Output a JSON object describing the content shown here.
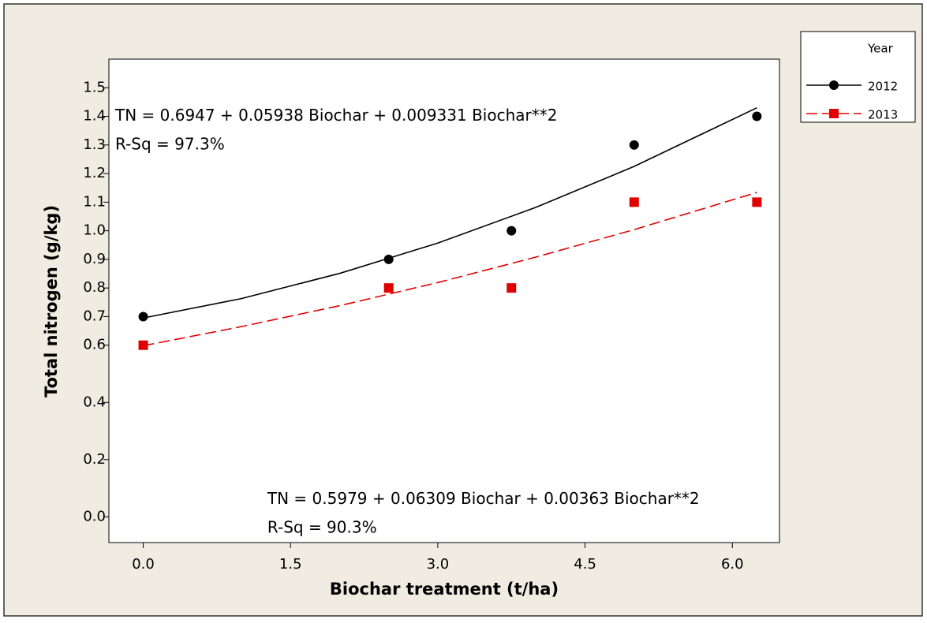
{
  "chart_data": {
    "type": "scatter",
    "x_label": "Biochar treatment (t/ha)",
    "y_label": "Total nitrogen (g/kg)",
    "x": [
      0,
      2.5,
      3.75,
      5,
      6.25
    ],
    "fit_x": [
      0,
      1,
      2,
      3,
      4,
      5,
      6.25
    ],
    "series": [
      {
        "name": "2012",
        "color": "#000000",
        "marker": "circle",
        "dash": false,
        "values": [
          0.7,
          0.9,
          1.0,
          1.3,
          1.4
        ],
        "fit_values": [
          0.695,
          0.763,
          0.851,
          0.957,
          1.082,
          1.225,
          1.43
        ]
      },
      {
        "name": "2013",
        "color": "#e00000",
        "marker": "square",
        "dash": true,
        "values": [
          0.6,
          0.8,
          0.8,
          1.1,
          1.1
        ],
        "fit_values": [
          0.598,
          0.665,
          0.738,
          0.819,
          0.908,
          1.004,
          1.134
        ]
      }
    ],
    "legend_title": "Year",
    "annotations": [
      {
        "text": "TN = 0.6947 + 0.05938 Biochar + 0.009331 Biochar**2",
        "x": -0.35,
        "y": 1.4
      },
      {
        "text": "R-Sq = 97.3%",
        "x": -0.35,
        "y": 1.3
      },
      {
        "text": "TN = 0.5979 + 0.06309 Biochar + 0.00363 Biochar**2",
        "x": 1.2,
        "y": 0.06
      },
      {
        "text": "R-Sq = 90.3%",
        "x": 1.2,
        "y": -0.04
      }
    ],
    "xlim": [
      -0.35,
      6.48
    ],
    "ylim": [
      -0.09,
      1.6
    ],
    "xticks": [
      {
        "value": 0,
        "label": "0.0"
      },
      1.5,
      {
        "value": 3,
        "label": "3.0"
      },
      4.5,
      {
        "value": 6,
        "label": "6.0"
      }
    ],
    "yticks": [
      {
        "value": 0,
        "label": "0.0"
      },
      0.2,
      0.4,
      0.6,
      0.7,
      0.8,
      0.9,
      {
        "value": 1,
        "label": "1.0"
      },
      1.1,
      1.2,
      1.3,
      1.4,
      1.5
    ]
  }
}
